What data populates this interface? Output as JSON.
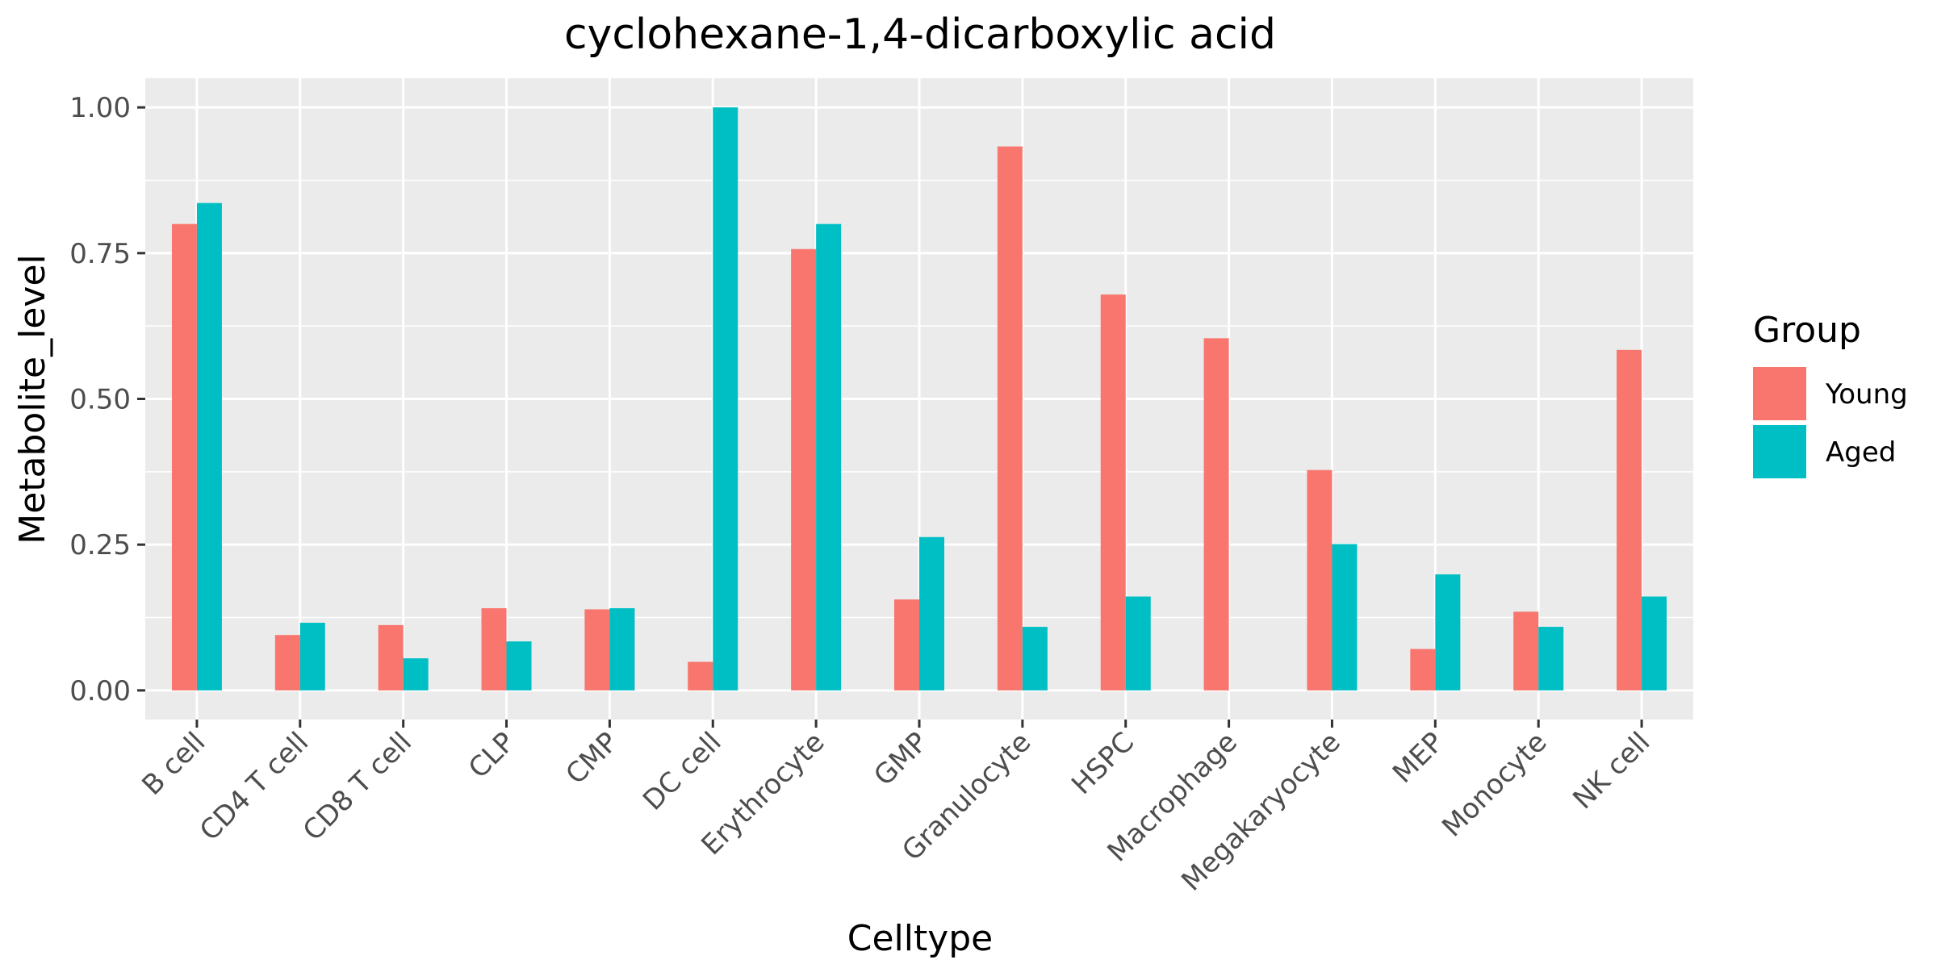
{
  "chart_data": {
    "type": "bar",
    "title": "cyclohexane-1,4-dicarboxylic acid",
    "xlabel": "Celltype",
    "ylabel": "Metabolite_level",
    "categories": [
      "B cell",
      "CD4 T cell",
      "CD8 T cell",
      "CLP",
      "CMP",
      "DC cell",
      "Erythrocyte",
      "GMP",
      "Granulocyte",
      "HSPC",
      "Macrophage",
      "Megakaryocyte",
      "MEP",
      "Monocyte",
      "NK cell"
    ],
    "series": [
      {
        "name": "Young",
        "color": "#F8766D",
        "values": [
          0.8,
          0.095,
          0.112,
          0.141,
          0.139,
          0.049,
          0.757,
          0.156,
          0.933,
          0.679,
          0.604,
          0.378,
          0.071,
          0.135,
          0.584
        ]
      },
      {
        "name": "Aged",
        "color": "#00BFC4",
        "values": [
          0.836,
          0.116,
          0.055,
          0.084,
          0.141,
          1.0,
          0.8,
          0.263,
          0.109,
          0.161,
          0.0,
          0.251,
          0.199,
          0.109,
          0.161
        ]
      }
    ],
    "ylim": [
      -0.05,
      1.05
    ],
    "yticks": [
      0.0,
      0.25,
      0.5,
      0.75,
      1.0
    ],
    "ytick_labels": [
      "0.00",
      "0.25",
      "0.50",
      "0.75",
      "1.00"
    ],
    "legend": {
      "title": "Group",
      "placement": "right"
    },
    "grid": true,
    "panel_background": "#EBEBEB"
  }
}
